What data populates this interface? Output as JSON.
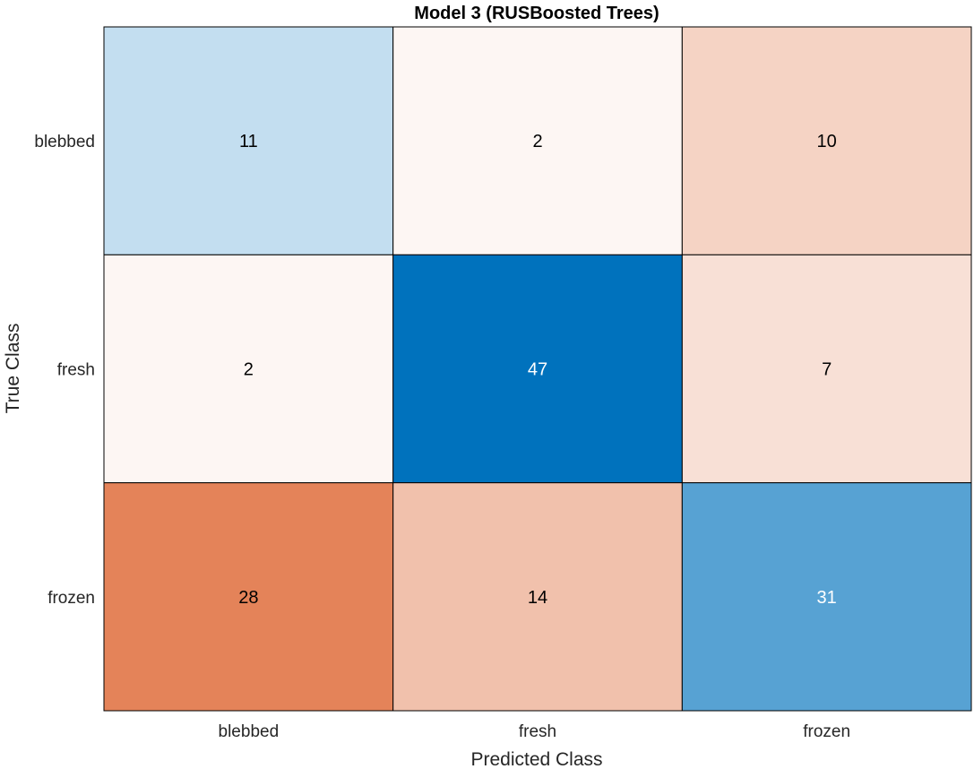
{
  "chart_data": {
    "type": "heatmap",
    "title": "Model 3 (RUSBoosted Trees)",
    "xlabel": "Predicted Class",
    "ylabel": "True Class",
    "x_categories": [
      "blebbed",
      "fresh",
      "frozen"
    ],
    "y_categories": [
      "blebbed",
      "fresh",
      "frozen"
    ],
    "values": [
      [
        11,
        2,
        10
      ],
      [
        2,
        47,
        7
      ],
      [
        28,
        14,
        31
      ]
    ],
    "colors": {
      "diagonal_max": "#0072BD",
      "diagonal_min": "#FFFFFF",
      "offdiag_max": "#D95319",
      "offdiag_min": "#FFFFFF",
      "cell_border": "#000000",
      "text_dark": "#000000",
      "text_light": "#FFFFFF"
    }
  }
}
